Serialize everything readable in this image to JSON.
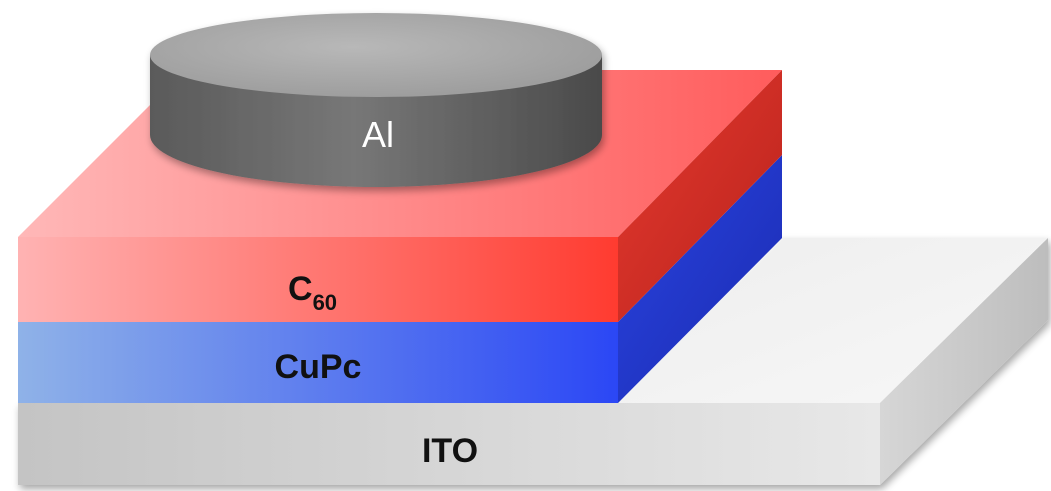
{
  "diagram": {
    "layers": [
      {
        "id": "ito",
        "label": "ITO",
        "colors": {
          "front_left": "#c4c4c4",
          "front_right": "#e8e8e8",
          "top": "#f2f2f2",
          "side": "#d2d2d2"
        }
      },
      {
        "id": "cupc",
        "label": "CuPc",
        "colors": {
          "front_left": "#8fb2e8",
          "front_right": "#2b47f5",
          "top": "#4a6cf0",
          "side": "#1e34c9"
        }
      },
      {
        "id": "c60",
        "label_main": "C",
        "label_sub": "60",
        "colors": {
          "front_left": "#ffb3b3",
          "front_right": "#ff3b30",
          "top_left": "#ffb8b8",
          "top_right": "#ff5c5c",
          "side": "#cf2a22"
        }
      },
      {
        "id": "al",
        "label": "Al",
        "colors": {
          "top": "#a9a9a9",
          "body": "#6a6a6a",
          "shade": "#4e4e4e"
        }
      }
    ]
  }
}
